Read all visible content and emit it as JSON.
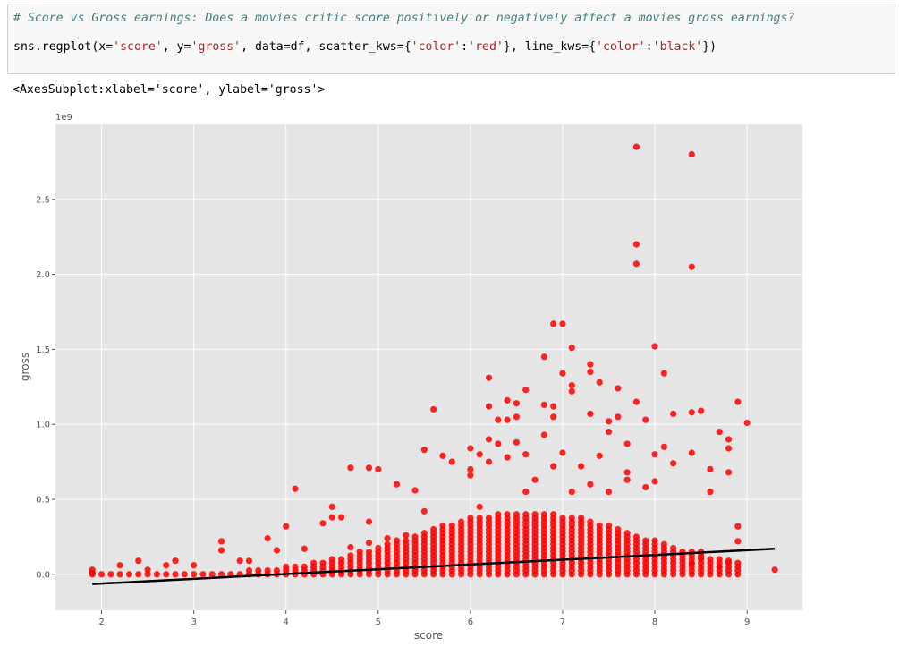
{
  "code_cell": {
    "comment": "# Score vs Gross earnings: Does a movies critic score positively or negatively affect a movies gross earnings?",
    "code_parts": [
      {
        "t": "sns.regplot(x=",
        "s": false
      },
      {
        "t": "'score'",
        "s": true
      },
      {
        "t": ", y=",
        "s": false
      },
      {
        "t": "'gross'",
        "s": true
      },
      {
        "t": ", data=df, scatter_kws={",
        "s": false
      },
      {
        "t": "'color'",
        "s": true
      },
      {
        "t": ":",
        "s": false
      },
      {
        "t": "'red'",
        "s": true
      },
      {
        "t": "}, line_kws={",
        "s": false
      },
      {
        "t": "'color'",
        "s": true
      },
      {
        "t": ":",
        "s": false
      },
      {
        "t": "'black'",
        "s": true
      },
      {
        "t": "})",
        "s": false
      }
    ]
  },
  "output": {
    "text": "<AxesSubplot:xlabel='score', ylabel='gross'>"
  },
  "chart_data": {
    "type": "scatter",
    "xlabel": "score",
    "ylabel": "gross",
    "offset_text": "1e9",
    "xlim": [
      1.5,
      9.6
    ],
    "ylim": [
      -0.24,
      3.0
    ],
    "x_ticks": [
      2,
      3,
      4,
      5,
      6,
      7,
      8,
      9
    ],
    "x_tick_labels": [
      "2",
      "3",
      "4",
      "5",
      "6",
      "7",
      "8",
      "9"
    ],
    "y_ticks": [
      0.0,
      0.5,
      1.0,
      1.5,
      2.0,
      2.5
    ],
    "y_tick_labels": [
      "0.0",
      "0.5",
      "1.0",
      "1.5",
      "2.0",
      "2.5"
    ],
    "grid": true,
    "scatter_color": "#ff0000",
    "line_color": "#000000",
    "background": "#e5e5e5",
    "regression_line": {
      "x": [
        1.9,
        9.3
      ],
      "y": [
        -0.065,
        0.17
      ]
    },
    "points": [
      [
        7.8,
        2.85
      ],
      [
        8.4,
        2.8
      ],
      [
        7.8,
        2.2
      ],
      [
        7.8,
        2.07
      ],
      [
        8.4,
        2.05
      ],
      [
        6.9,
        1.67
      ],
      [
        7.0,
        1.67
      ],
      [
        8.0,
        1.52
      ],
      [
        7.1,
        1.51
      ],
      [
        6.8,
        1.45
      ],
      [
        7.3,
        1.4
      ],
      [
        7.3,
        1.35
      ],
      [
        7.0,
        1.34
      ],
      [
        8.1,
        1.34
      ],
      [
        6.2,
        1.31
      ],
      [
        7.4,
        1.28
      ],
      [
        6.6,
        1.23
      ],
      [
        7.1,
        1.26
      ],
      [
        7.6,
        1.24
      ],
      [
        7.1,
        1.22
      ],
      [
        6.4,
        1.16
      ],
      [
        6.5,
        1.14
      ],
      [
        6.8,
        1.13
      ],
      [
        7.8,
        1.15
      ],
      [
        8.9,
        1.15
      ],
      [
        5.6,
        1.1
      ],
      [
        6.2,
        1.12
      ],
      [
        6.9,
        1.12
      ],
      [
        8.4,
        1.08
      ],
      [
        8.5,
        1.09
      ],
      [
        6.4,
        1.03
      ],
      [
        6.3,
        1.03
      ],
      [
        7.3,
        1.07
      ],
      [
        7.6,
        1.05
      ],
      [
        8.2,
        1.07
      ],
      [
        9.0,
        1.01
      ],
      [
        6.5,
        1.05
      ],
      [
        6.9,
        1.05
      ],
      [
        7.5,
        1.02
      ],
      [
        7.9,
        1.03
      ],
      [
        6.8,
        0.93
      ],
      [
        7.5,
        0.95
      ],
      [
        6.2,
        0.9
      ],
      [
        8.7,
        0.95
      ],
      [
        8.8,
        0.9
      ],
      [
        6.0,
        0.84
      ],
      [
        6.1,
        0.8
      ],
      [
        5.8,
        0.75
      ],
      [
        5.5,
        0.83
      ],
      [
        6.3,
        0.87
      ],
      [
        6.5,
        0.88
      ],
      [
        7.7,
        0.87
      ],
      [
        8.1,
        0.85
      ],
      [
        8.8,
        0.84
      ],
      [
        8.4,
        0.81
      ],
      [
        5.7,
        0.79
      ],
      [
        6.4,
        0.78
      ],
      [
        6.6,
        0.8
      ],
      [
        7.0,
        0.81
      ],
      [
        7.4,
        0.79
      ],
      [
        8.0,
        0.8
      ],
      [
        4.7,
        0.71
      ],
      [
        4.9,
        0.71
      ],
      [
        5.0,
        0.7
      ],
      [
        6.0,
        0.7
      ],
      [
        6.2,
        0.75
      ],
      [
        7.2,
        0.72
      ],
      [
        8.2,
        0.74
      ],
      [
        8.6,
        0.7
      ],
      [
        8.8,
        0.68
      ],
      [
        5.2,
        0.6
      ],
      [
        5.4,
        0.56
      ],
      [
        6.0,
        0.66
      ],
      [
        7.7,
        0.68
      ],
      [
        4.1,
        0.57
      ],
      [
        4.5,
        0.45
      ],
      [
        4.5,
        0.38
      ],
      [
        4.6,
        0.38
      ],
      [
        4.0,
        0.32
      ],
      [
        4.4,
        0.34
      ],
      [
        4.9,
        0.35
      ],
      [
        3.3,
        0.22
      ],
      [
        3.8,
        0.24
      ],
      [
        3.3,
        0.16
      ],
      [
        4.2,
        0.17
      ],
      [
        4.7,
        0.18
      ],
      [
        4.9,
        0.21
      ],
      [
        5.1,
        0.24
      ],
      [
        5.3,
        0.26
      ],
      [
        8.9,
        0.32
      ],
      [
        8.9,
        0.22
      ],
      [
        8.8,
        0.09
      ],
      [
        9.3,
        0.03
      ],
      [
        8.7,
        0.05
      ],
      [
        8.5,
        0.15
      ],
      [
        8.5,
        0.11
      ],
      [
        8.4,
        0.07
      ],
      [
        2.2,
        0.06
      ],
      [
        2.4,
        0.09
      ],
      [
        2.7,
        0.06
      ],
      [
        2.8,
        0.09
      ],
      [
        3.0,
        0.06
      ],
      [
        1.9,
        0.03
      ],
      [
        1.9,
        0.01
      ],
      [
        2.5,
        0.03
      ],
      [
        3.5,
        0.09
      ],
      [
        3.6,
        0.09
      ],
      [
        3.9,
        0.16
      ],
      [
        5.5,
        0.42
      ],
      [
        6.1,
        0.45
      ],
      [
        6.6,
        0.55
      ],
      [
        7.1,
        0.55
      ],
      [
        7.3,
        0.6
      ],
      [
        7.5,
        0.55
      ],
      [
        8.6,
        0.55
      ],
      [
        7.9,
        0.58
      ],
      [
        8.0,
        0.62
      ],
      [
        6.7,
        0.63
      ],
      [
        7.7,
        0.63
      ],
      [
        6.9,
        0.72
      ]
    ]
  }
}
